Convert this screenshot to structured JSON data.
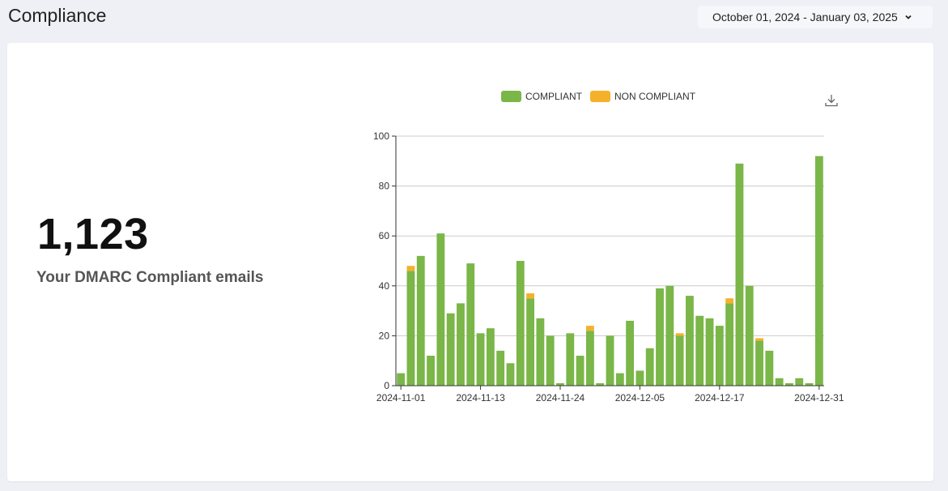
{
  "header": {
    "title": "Compliance",
    "date_range": "October 01, 2024 - January 03, 2025"
  },
  "stats": {
    "value": "1,123",
    "label": "Your DMARC Compliant emails"
  },
  "legend": {
    "compliant": "COMPLIANT",
    "non_compliant": "NON COMPLIANT"
  },
  "colors": {
    "compliant": "#7ab648",
    "non_compliant": "#f5b12a",
    "grid": "#cccccc",
    "axis": "#333333"
  },
  "icons": {
    "download": "download-icon",
    "chevron": "chevron-down-icon"
  },
  "chart_data": {
    "type": "bar",
    "stacked": true,
    "grid": true,
    "legend_position": "top",
    "ylim": [
      0,
      100
    ],
    "y_ticks": [
      "0",
      "20",
      "40",
      "60",
      "80",
      "100"
    ],
    "x_tick_labels": [
      "2024-11-01",
      "2024-11-13",
      "2024-11-24",
      "2024-12-05",
      "2024-12-17",
      "2024-12-31"
    ],
    "x_tick_indices": [
      0,
      8,
      16,
      24,
      32,
      42
    ],
    "series": [
      {
        "name": "COMPLIANT",
        "values": [
          5,
          46,
          52,
          12,
          61,
          29,
          33,
          49,
          21,
          23,
          14,
          9,
          50,
          35,
          27,
          20,
          1,
          21,
          12,
          22,
          1,
          20,
          5,
          26,
          6,
          15,
          39,
          40,
          20,
          36,
          28,
          27,
          24,
          33,
          89,
          40,
          18,
          14,
          3,
          1,
          3,
          1,
          92
        ]
      },
      {
        "name": "NON COMPLIANT",
        "values": [
          0,
          2,
          0,
          0,
          0,
          0,
          0,
          0,
          0,
          0,
          0,
          0,
          0,
          2,
          0,
          0,
          0,
          0,
          0,
          2,
          0,
          0,
          0,
          0,
          0,
          0,
          0,
          0,
          1,
          0,
          0,
          0,
          0,
          2,
          0,
          0,
          1,
          0,
          0,
          0,
          0,
          0,
          0
        ]
      }
    ]
  }
}
